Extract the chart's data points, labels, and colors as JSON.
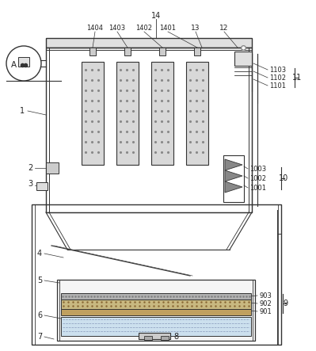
{
  "bg_color": "#ffffff",
  "lc": "#555555",
  "dc": "#333333",
  "lc2": "#444444",
  "bag_fill": "#d8d8d8",
  "bag_dot": "#777777",
  "header_fill": "#e8e8e8",
  "water_fill": "#cce0ee",
  "mesh_fill1": "#b8b8b8",
  "mesh_fill2": "#d0c8a0",
  "outer_fill": "#f8f8f8"
}
